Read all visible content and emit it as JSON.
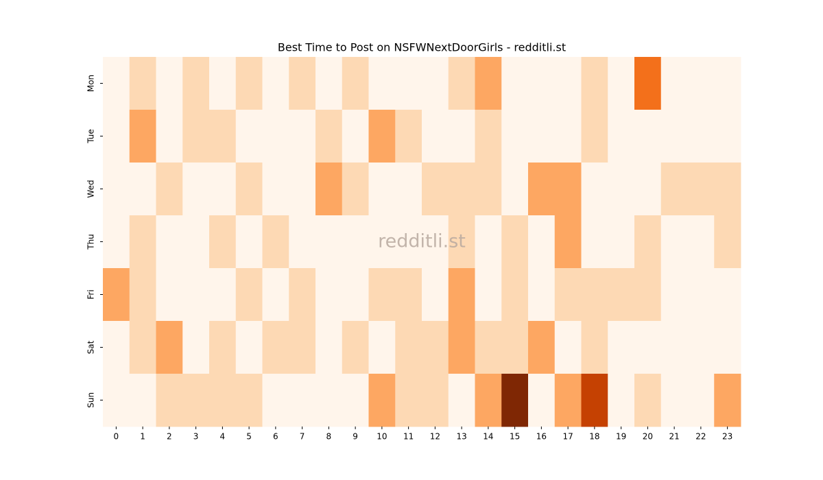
{
  "chart_data": {
    "type": "heatmap",
    "title": "Best Time to Post on NSFWNextDoorGirls - redditli.st",
    "watermark": "redditli.st",
    "x": [
      0,
      1,
      2,
      3,
      4,
      5,
      6,
      7,
      8,
      9,
      10,
      11,
      12,
      13,
      14,
      15,
      16,
      17,
      18,
      19,
      20,
      21,
      22,
      23
    ],
    "categories": [
      "Mon",
      "Tue",
      "Wed",
      "Thu",
      "Fri",
      "Sat",
      "Sun"
    ],
    "values": [
      [
        0,
        1,
        0,
        1,
        0,
        1,
        0,
        1,
        0,
        1,
        0,
        0,
        0,
        1,
        2,
        0,
        0,
        0,
        1,
        0,
        3,
        0,
        0,
        0
      ],
      [
        0,
        2,
        0,
        1,
        1,
        0,
        0,
        0,
        1,
        0,
        2,
        1,
        0,
        0,
        1,
        0,
        0,
        0,
        1,
        0,
        0,
        0,
        0,
        0
      ],
      [
        0,
        0,
        1,
        0,
        0,
        1,
        0,
        0,
        2,
        1,
        0,
        0,
        1,
        1,
        1,
        0,
        2,
        2,
        0,
        0,
        0,
        1,
        1,
        1
      ],
      [
        0,
        1,
        0,
        0,
        1,
        0,
        1,
        0,
        0,
        0,
        0,
        0,
        0,
        1,
        0,
        1,
        0,
        2,
        0,
        0,
        1,
        0,
        0,
        1
      ],
      [
        2,
        1,
        0,
        0,
        0,
        1,
        0,
        1,
        0,
        0,
        1,
        1,
        0,
        2,
        0,
        1,
        0,
        1,
        1,
        1,
        1,
        0,
        0,
        0
      ],
      [
        0,
        1,
        2,
        0,
        1,
        0,
        1,
        1,
        0,
        1,
        0,
        1,
        1,
        2,
        1,
        1,
        2,
        0,
        1,
        0,
        0,
        0,
        0,
        0
      ],
      [
        0,
        0,
        1,
        1,
        1,
        1,
        0,
        0,
        0,
        0,
        2,
        1,
        1,
        0,
        2,
        5,
        0,
        2,
        4,
        0,
        1,
        0,
        0,
        2
      ]
    ],
    "colors": [
      "#fff5eb",
      "#fee6ce",
      "#fdd0a2",
      "#fdae6b",
      "#fd8d3c",
      "#f16913",
      "#d94801",
      "#a63603",
      "#7f2704"
    ]
  }
}
